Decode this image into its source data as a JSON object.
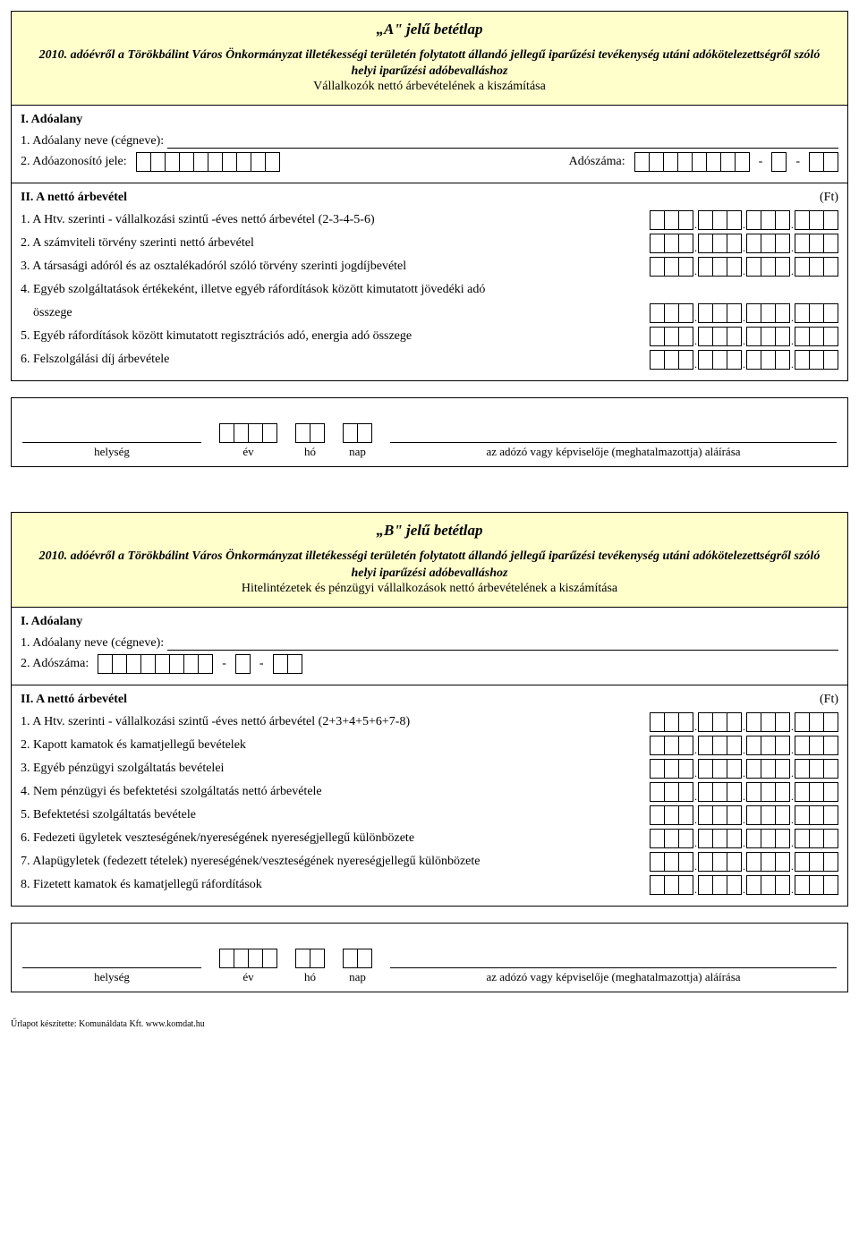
{
  "formA": {
    "title": "„A\" jelű betétlap",
    "subtitle_bold": "2010. adóévről a Törökbálint Város Önkormányzat illetékességi területén folytatott állandó jellegű iparűzési tevékenység utáni adókötelezettségről szóló helyi iparűzési adóbevalláshoz",
    "subtitle_plain": "Vállalkozók nettó árbevételének a kiszámítása",
    "sec1_title": "I. Adóalany",
    "sec1_item1": "1. Adóalany neve (cégneve):",
    "sec1_item2": "2. Adóazonosító jele:",
    "sec1_adoszam_label": "Adószáma:",
    "sec2_title": "II. A nettó árbevétel",
    "ft": "(Ft)",
    "items": [
      "1. A Htv. szerinti - vállalkozási szintű -éves nettó árbevétel  (2-3-4-5-6)",
      "2. A számviteli törvény szerinti nettó árbevétel",
      "3. A társasági adóról és az osztalékadóról szóló törvény szerinti jogdíjbevétel",
      "4. Egyéb szolgáltatások értékeként, illetve egyéb ráfordítások között kimutatott jövedéki adó",
      "összege",
      "5. Egyéb ráfordítások között kimutatott regisztrációs adó, energia adó összege",
      "6. Felszolgálási díj árbevétele"
    ]
  },
  "sig": {
    "helyseg": "helység",
    "ev": "év",
    "ho": "hó",
    "nap": "nap",
    "alairas": "az adózó vagy képviselője (meghatalmazottja) aláírása"
  },
  "formB": {
    "title": "„B\" jelű betétlap",
    "subtitle_bold": "2010. adóévről a Törökbálint Város Önkormányzat illetékességi területén folytatott állandó jellegű iparűzési tevékenység utáni adókötelezettségről szóló helyi iparűzési adóbevalláshoz",
    "subtitle_plain": "Hitelintézetek és pénzügyi vállalkozások nettó árbevételének a kiszámítása",
    "sec1_title": "I. Adóalany",
    "sec1_item1": "1. Adóalany neve (cégneve):",
    "sec1_item2": "2. Adószáma:",
    "sec2_title": "II. A nettó árbevétel",
    "ft": "(Ft)",
    "items": [
      "1. A Htv. szerinti - vállalkozási szintű -éves nettó árbevétel  (2+3+4+5+6+7-8)",
      "2. Kapott kamatok és kamatjellegű bevételek",
      "3. Egyéb pénzügyi szolgáltatás bevételei",
      "4. Nem pénzügyi és befektetési szolgáltatás nettó árbevétele",
      "5. Befektetési szolgáltatás bevétele",
      "6. Fedezeti ügyletek veszteségének/nyereségének nyereségjellegű különbözete",
      "7. Alapügyletek (fedezett tételek) nyereségének/veszteségének nyereségjellegű különbözete",
      "8. Fizetett kamatok és kamatjellegű ráfordítások"
    ]
  },
  "footer": "Űrlapot készítette: Komunáldata Kft.  www.komdat.hu"
}
